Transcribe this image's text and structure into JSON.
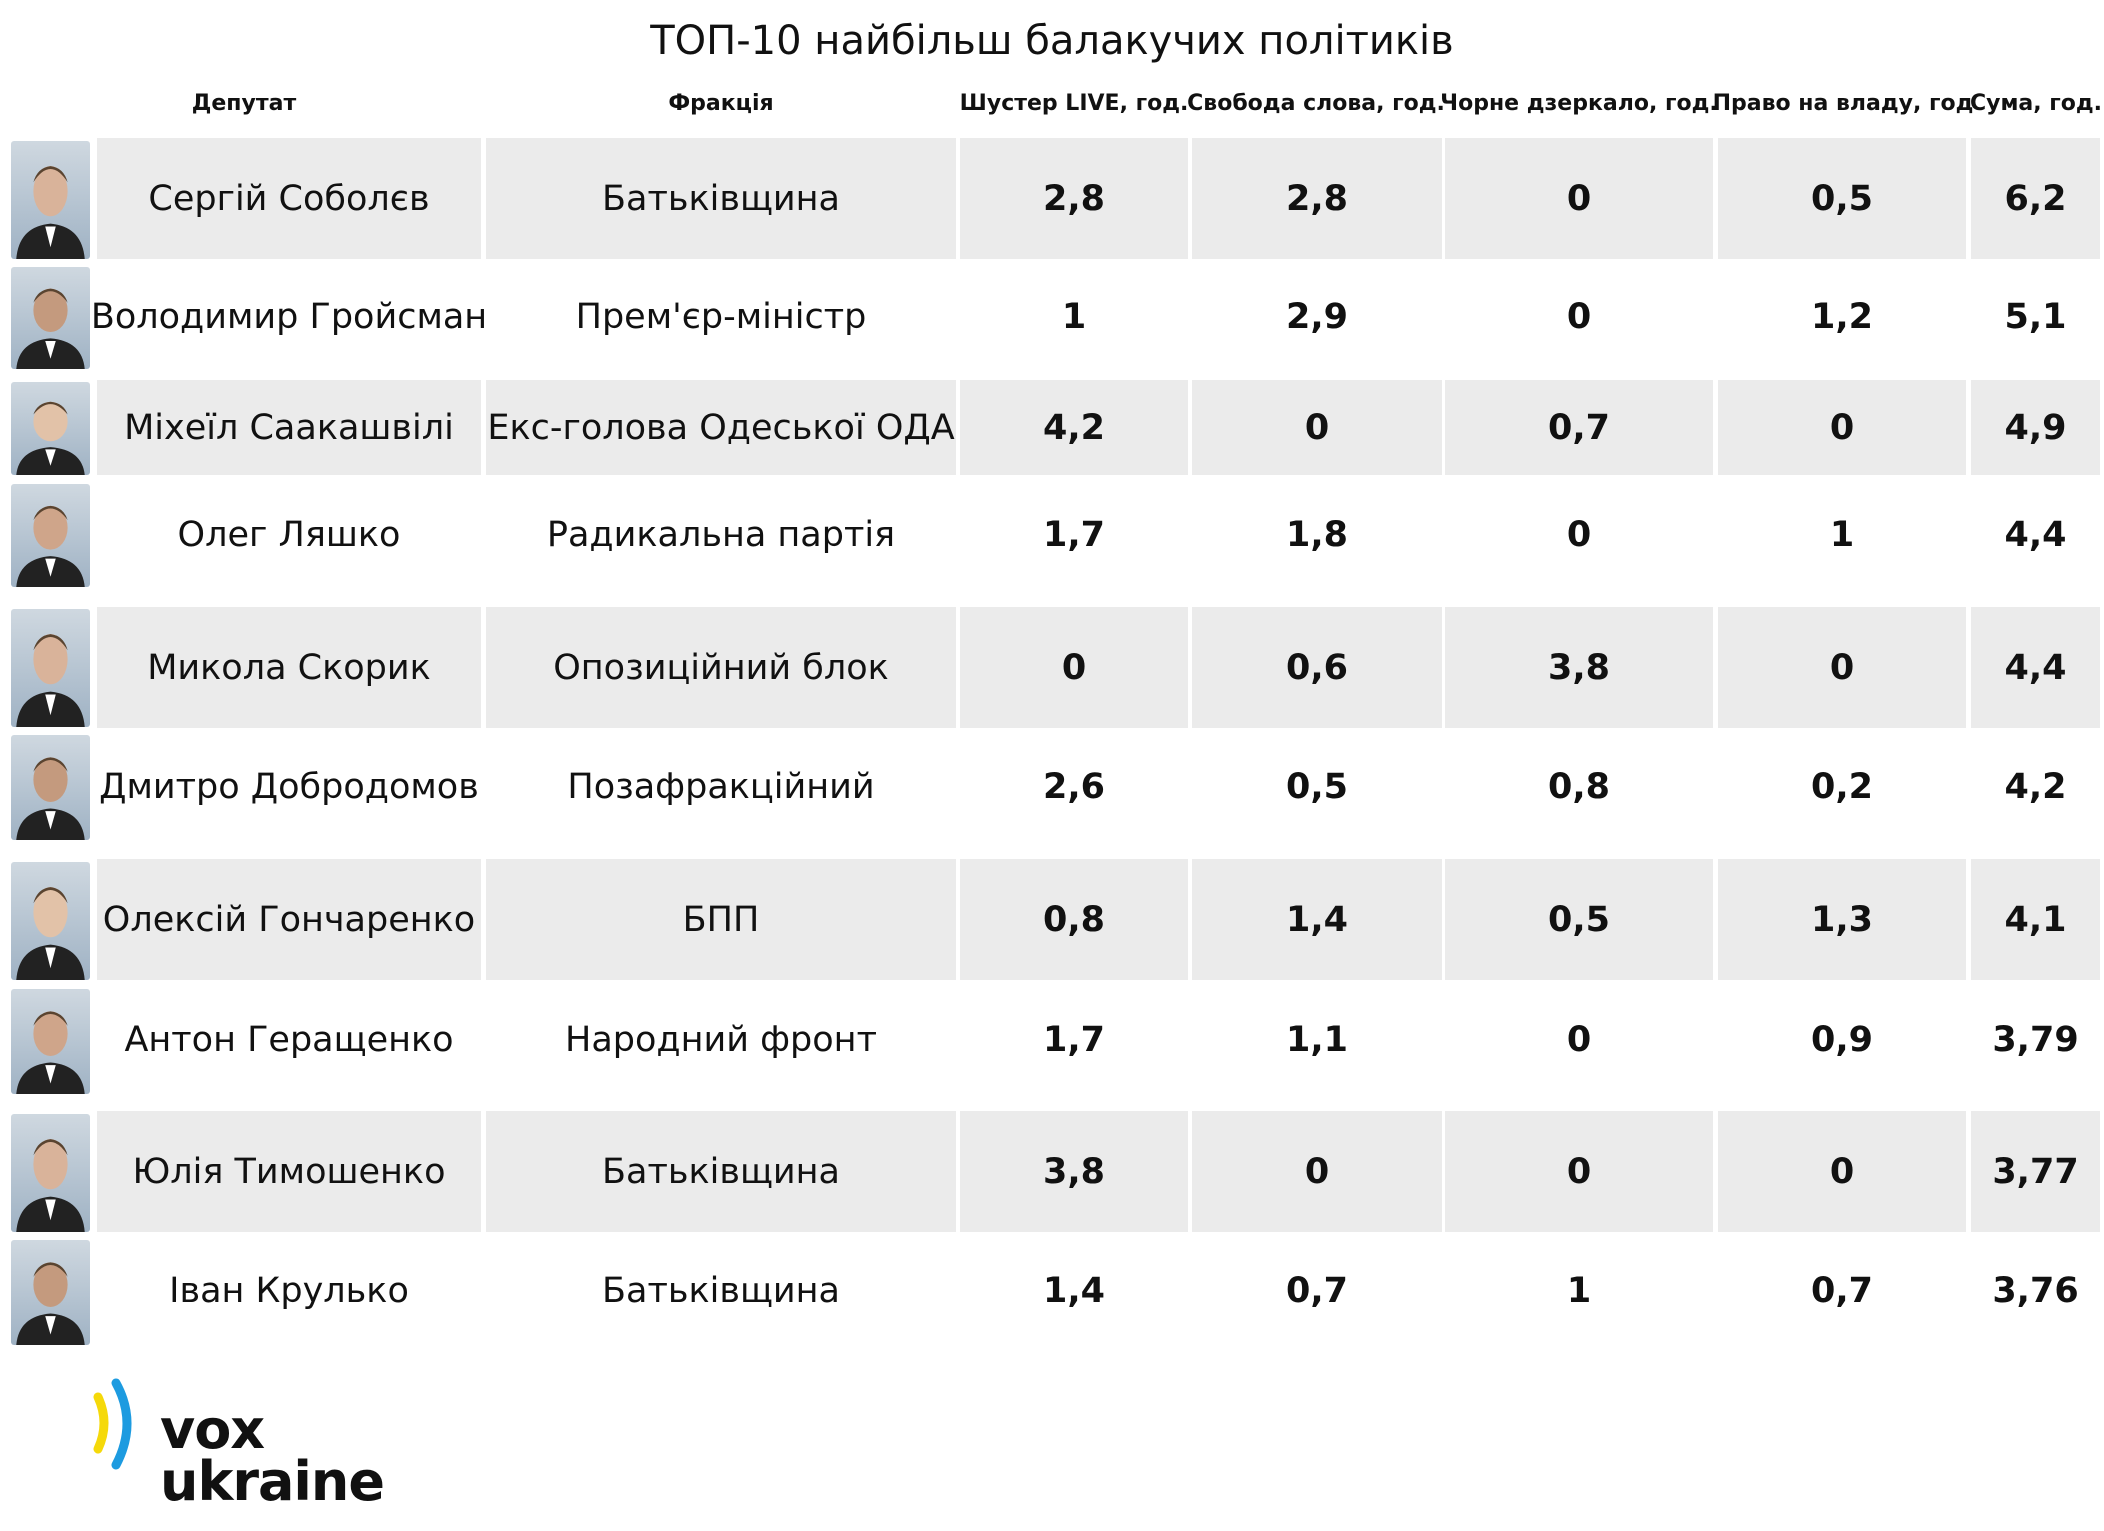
{
  "title": "ТОП-10 найбільш балакучих політиків",
  "table": {
    "headers": [
      "Депутат",
      "Фракція",
      "Шустер LIVE, год.",
      "Свобода слова, год.",
      "Чорне дзеркало, год.",
      "Право на владу, год",
      "Сума, год."
    ],
    "rows": [
      [
        "Сергій Соболєв",
        "Батьківщина",
        "2,8",
        "2,8",
        "0",
        "0,5",
        "6,2"
      ],
      [
        "Володимир Гройсман",
        "Прем'єр-міністр",
        "1",
        "2,9",
        "0",
        "1,2",
        "5,1"
      ],
      [
        "Міхеїл Саакашвілі",
        "Екс-голова Одеської ОДА",
        "4,2",
        "0",
        "0,7",
        "0",
        "4,9"
      ],
      [
        "Олег Ляшко",
        "Радикальна партія",
        "1,7",
        "1,8",
        "0",
        "1",
        "4,4"
      ],
      [
        "Микола Скорик",
        "Опозиційний блок",
        "0",
        "0,6",
        "3,8",
        "0",
        "4,4"
      ],
      [
        "Дмитро Добродомов",
        "Позафракційний",
        "2,6",
        "0,5",
        "0,8",
        "0,2",
        "4,2"
      ],
      [
        "Олексій Гончаренко",
        "БПП",
        "0,8",
        "1,4",
        "0,5",
        "1,3",
        "4,1"
      ],
      [
        "Антон Геращенко",
        "Народний фронт",
        "1,7",
        "1,1",
        "0",
        "0,9",
        "3,79"
      ],
      [
        "Юлія Тимошенко",
        "Батьківщина",
        "3,8",
        "0",
        "0",
        "0",
        "3,77"
      ],
      [
        "Іван Крулько",
        "Батьківщина",
        "1,4",
        "0,7",
        "1",
        "0,7",
        "3,76"
      ]
    ]
  },
  "logo": {
    "line1": "vox",
    "line2": "ukraine"
  }
}
